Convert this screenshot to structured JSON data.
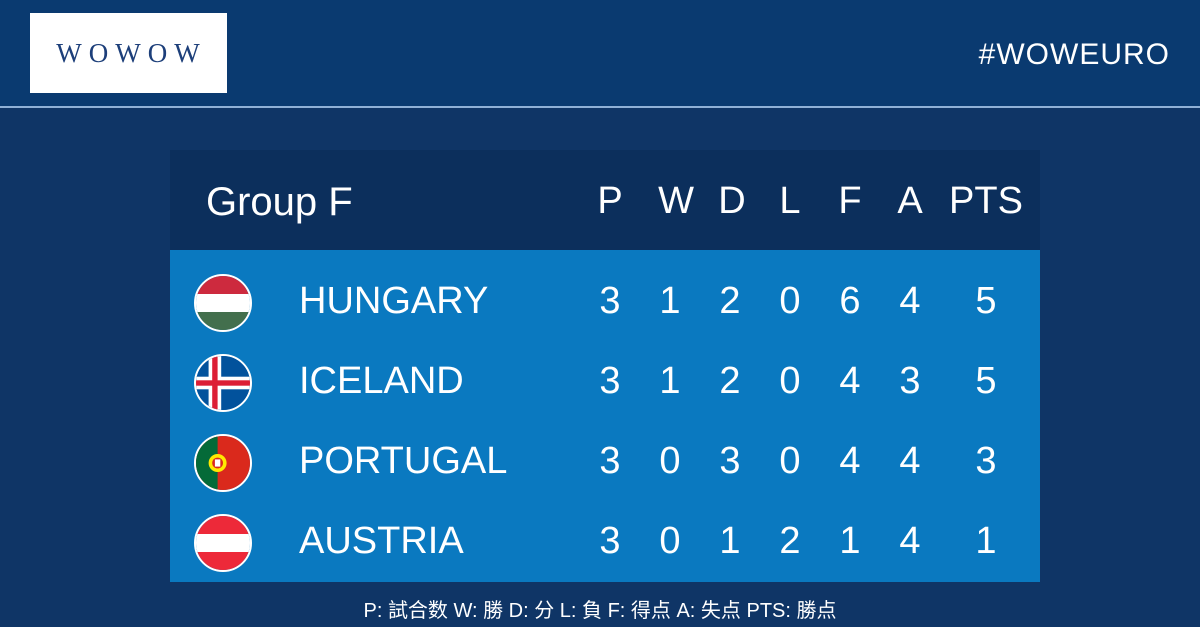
{
  "header": {
    "logo_text": "WOWOW",
    "hashtag": "#WOWEURO"
  },
  "table": {
    "group_title": "Group F",
    "columns": [
      "P",
      "W",
      "D",
      "L",
      "F",
      "A",
      "PTS"
    ],
    "rows": [
      {
        "team": "HUNGARY",
        "flag_icon": "hungary-flag-icon",
        "values": [
          "3",
          "1",
          "2",
          "0",
          "6",
          "4",
          "5"
        ]
      },
      {
        "team": "ICELAND",
        "flag_icon": "iceland-flag-icon",
        "values": [
          "3",
          "1",
          "2",
          "0",
          "4",
          "3",
          "5"
        ]
      },
      {
        "team": "PORTUGAL",
        "flag_icon": "portugal-flag-icon",
        "values": [
          "3",
          "0",
          "3",
          "0",
          "4",
          "4",
          "3"
        ]
      },
      {
        "team": "AUSTRIA",
        "flag_icon": "austria-flag-icon",
        "values": [
          "3",
          "0",
          "1",
          "2",
          "1",
          "4",
          "1"
        ]
      }
    ]
  },
  "legend": "P: 試合数 W: 勝 D: 分 L: 負 F: 得点 A: 失点 PTS: 勝点",
  "colors": {
    "background": "#0f3566",
    "header_band": "#0a3a70",
    "table_header": "#0c2f5c",
    "table_body": "#0a79c0"
  }
}
